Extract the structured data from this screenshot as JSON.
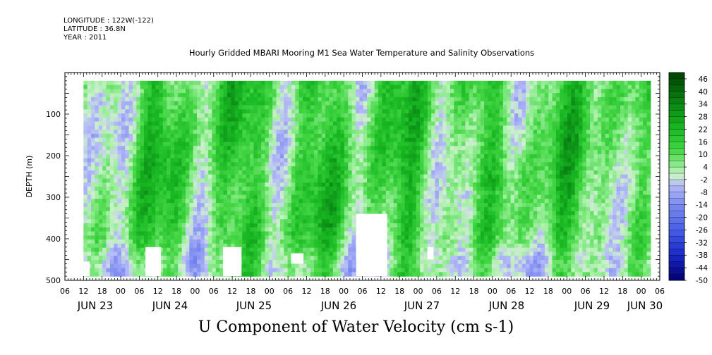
{
  "header": {
    "longitude": "LONGITUDE : 122W(-122)",
    "latitude": "LATITUDE : 36.8N",
    "year": "YEAR : 2011"
  },
  "chart_data": {
    "type": "heatmap",
    "title": "Hourly Gridded MBARI Mooring M1 Sea Water Temperature and Salinity Observations",
    "subtitle": "U Component of Water Velocity (cm s-1)",
    "ylabel": "DEPTH (m)",
    "xlabel": "",
    "y_reversed": true,
    "ylim": [
      500,
      0
    ],
    "data_depth_range": [
      20,
      490
    ],
    "yticks": [
      100,
      200,
      300,
      400,
      500
    ],
    "x_start": "2011-06-22T06:00",
    "x_end": "2011-06-30T06:00",
    "data_x_start": "2011-06-22T12:00",
    "data_x_end": "2011-06-30T03:00",
    "x_hour_ticks": [
      "06",
      "12",
      "18",
      "00",
      "06",
      "12",
      "18",
      "00",
      "06",
      "12",
      "18",
      "00",
      "06",
      "12",
      "18",
      "00",
      "06",
      "12",
      "18",
      "00",
      "06",
      "12",
      "18",
      "00",
      "06",
      "12",
      "18",
      "00",
      "06",
      "12",
      "18",
      "00",
      "06"
    ],
    "x_day_labels": [
      "JUN 23",
      "JUN 24",
      "JUN 25",
      "JUN 26",
      "JUN 27",
      "JUN 28",
      "JUN 29",
      "JUN 30"
    ],
    "colorbar": {
      "levels": [
        "46",
        "40",
        "34",
        "28",
        "22",
        "16",
        "10",
        "4",
        "-2",
        "-8",
        "-14",
        "-20",
        "-26",
        "-32",
        "-38",
        "-44",
        "-50"
      ],
      "min": -50,
      "max": 49,
      "step": 3
    },
    "missing_regions": [
      {
        "x_start": "2011-06-22T12:00",
        "x_end": "2011-06-22T14:00",
        "depth_start": 455,
        "depth_end": 490
      },
      {
        "x_start": "2011-06-23T08:00",
        "x_end": "2011-06-23T13:00",
        "depth_start": 420,
        "depth_end": 490
      },
      {
        "x_start": "2011-06-24T09:00",
        "x_end": "2011-06-24T15:00",
        "depth_start": 420,
        "depth_end": 490
      },
      {
        "x_start": "2011-06-25T07:00",
        "x_end": "2011-06-25T11:00",
        "depth_start": 435,
        "depth_end": 460
      },
      {
        "x_start": "2011-06-26T04:00",
        "x_end": "2011-06-26T14:00",
        "depth_start": 340,
        "depth_end": 490
      },
      {
        "x_start": "2011-06-27T03:00",
        "x_end": "2011-06-27T05:00",
        "depth_start": 420,
        "depth_end": 450
      }
    ]
  }
}
